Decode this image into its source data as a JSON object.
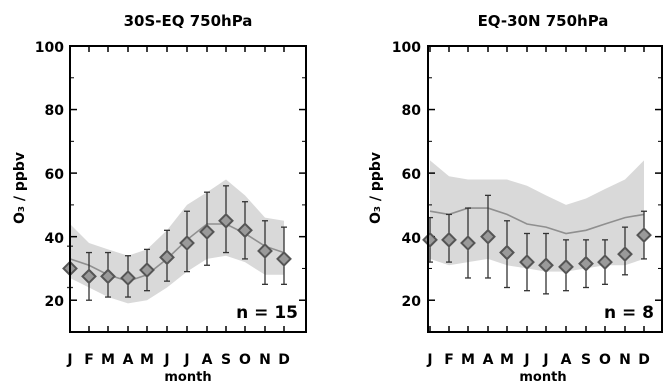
{
  "chart_data": [
    {
      "type": "line",
      "title": "30S-EQ 750hPa",
      "xlabel": "month",
      "ylabel": "O₃ / ppbv",
      "ylim": [
        10,
        100
      ],
      "yticks": [
        "20",
        "40",
        "60",
        "80",
        "100"
      ],
      "yticks_values": [
        20,
        40,
        60,
        80,
        100
      ],
      "categories": [
        "J",
        "F",
        "M",
        "A",
        "M",
        "J",
        "J",
        "A",
        "S",
        "O",
        "N",
        "D"
      ],
      "annotation": "n = 15",
      "band_color": "#d9d9d9",
      "band_line_color": "#8f8f8f",
      "marker_edge_color": "#555555",
      "marker_fill_color": "#9a9a9a",
      "series": [
        {
          "marker": "diamond",
          "values": [
            30,
            27.5,
            27.5,
            27,
            29.5,
            33.5,
            38,
            41.5,
            45,
            42,
            35.5,
            33
          ],
          "err_low": [
            24,
            20,
            21,
            21,
            23,
            26,
            29,
            31,
            35,
            33,
            25,
            25
          ],
          "err_high": [
            37,
            35,
            35,
            34,
            36,
            42,
            48,
            54,
            56,
            51,
            45,
            43
          ]
        },
        {
          "kind": "band",
          "center": [
            33,
            31,
            28,
            26,
            28,
            33,
            39,
            44,
            44,
            41,
            37,
            35
          ],
          "lower": [
            27,
            24,
            21,
            19,
            20,
            24,
            29,
            33,
            34,
            32,
            28,
            28
          ],
          "upper": [
            44,
            38,
            36,
            34,
            36,
            42,
            50,
            54,
            58,
            53,
            46,
            45
          ]
        }
      ]
    },
    {
      "type": "line",
      "title": "EQ-30N 750hPa",
      "xlabel": "month",
      "ylabel": "O₃ / ppbv",
      "ylim": [
        10,
        100
      ],
      "yticks": [
        "20",
        "40",
        "60",
        "80",
        "100"
      ],
      "yticks_values": [
        20,
        40,
        60,
        80,
        100
      ],
      "categories": [
        "J",
        "F",
        "M",
        "A",
        "M",
        "J",
        "J",
        "A",
        "S",
        "O",
        "N",
        "D"
      ],
      "annotation": "n = 8",
      "band_color": "#d9d9d9",
      "band_line_color": "#8f8f8f",
      "marker_edge_color": "#555555",
      "marker_fill_color": "#9a9a9a",
      "series": [
        {
          "marker": "diamond",
          "values": [
            39,
            39,
            38,
            40,
            35,
            32,
            31,
            30.5,
            31.5,
            32,
            34.5,
            40.5
          ],
          "err_low": [
            32,
            32,
            27,
            27,
            24,
            23,
            22,
            23,
            24,
            25,
            28,
            33
          ],
          "err_high": [
            46,
            47,
            49,
            53,
            45,
            41,
            41,
            39,
            39,
            39,
            43,
            48
          ]
        },
        {
          "kind": "band",
          "center": [
            48,
            47,
            49,
            49,
            47,
            44,
            43,
            41,
            42,
            44,
            46,
            47
          ],
          "lower": [
            33,
            31,
            32,
            33,
            31,
            30,
            29,
            29,
            30,
            31,
            31,
            33
          ],
          "upper": [
            64,
            59,
            58,
            58,
            58,
            56,
            53,
            50,
            52,
            55,
            58,
            64
          ]
        }
      ]
    }
  ]
}
